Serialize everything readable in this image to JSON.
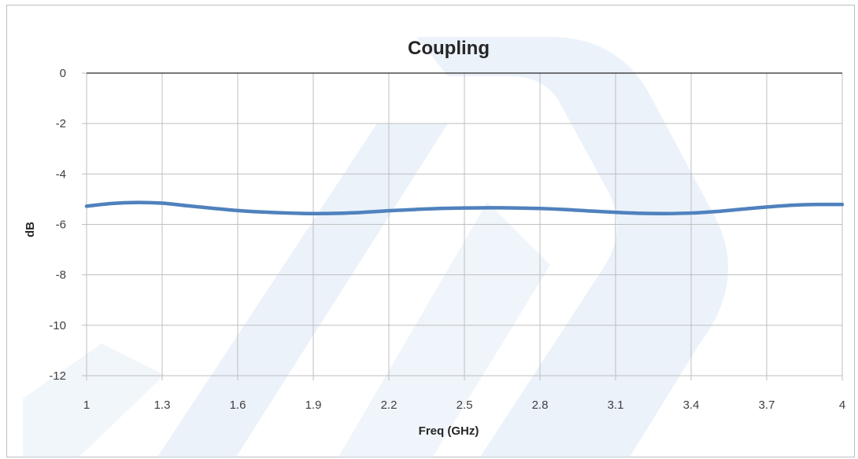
{
  "chart_data": {
    "type": "line",
    "title": "Coupling",
    "xlabel": "Freq (GHz)",
    "ylabel": "dB",
    "xlim": [
      1,
      4
    ],
    "ylim": [
      -12,
      0
    ],
    "x_ticks": [
      "1",
      "1.3",
      "1.6",
      "1.9",
      "2.2",
      "2.5",
      "2.8",
      "3.1",
      "3.4",
      "3.7",
      "4"
    ],
    "y_ticks": [
      "0",
      "-2",
      "-4",
      "-6",
      "-8",
      "-10",
      "-12"
    ],
    "grid": true,
    "legend": "none",
    "series": [
      {
        "color": "#4f81bd",
        "x": [
          1.0,
          1.1,
          1.2,
          1.3,
          1.4,
          1.5,
          1.6,
          1.7,
          1.8,
          1.9,
          2.0,
          2.1,
          2.2,
          2.3,
          2.4,
          2.5,
          2.6,
          2.7,
          2.8,
          2.9,
          3.0,
          3.1,
          3.2,
          3.3,
          3.4,
          3.5,
          3.6,
          3.7,
          3.8,
          3.9,
          4.0
        ],
        "y": [
          -5.28,
          -5.17,
          -5.13,
          -5.16,
          -5.26,
          -5.36,
          -5.45,
          -5.51,
          -5.55,
          -5.57,
          -5.56,
          -5.52,
          -5.46,
          -5.41,
          -5.37,
          -5.35,
          -5.34,
          -5.35,
          -5.37,
          -5.41,
          -5.47,
          -5.52,
          -5.56,
          -5.57,
          -5.55,
          -5.49,
          -5.4,
          -5.31,
          -5.24,
          -5.21,
          -5.21
        ]
      }
    ]
  },
  "colors": {
    "line": "#4f81bd",
    "grid": "#bfbfbf",
    "axis": "#262626",
    "watermark": "#dbe8f5"
  },
  "watermark_icon": "company-logo-watermark"
}
